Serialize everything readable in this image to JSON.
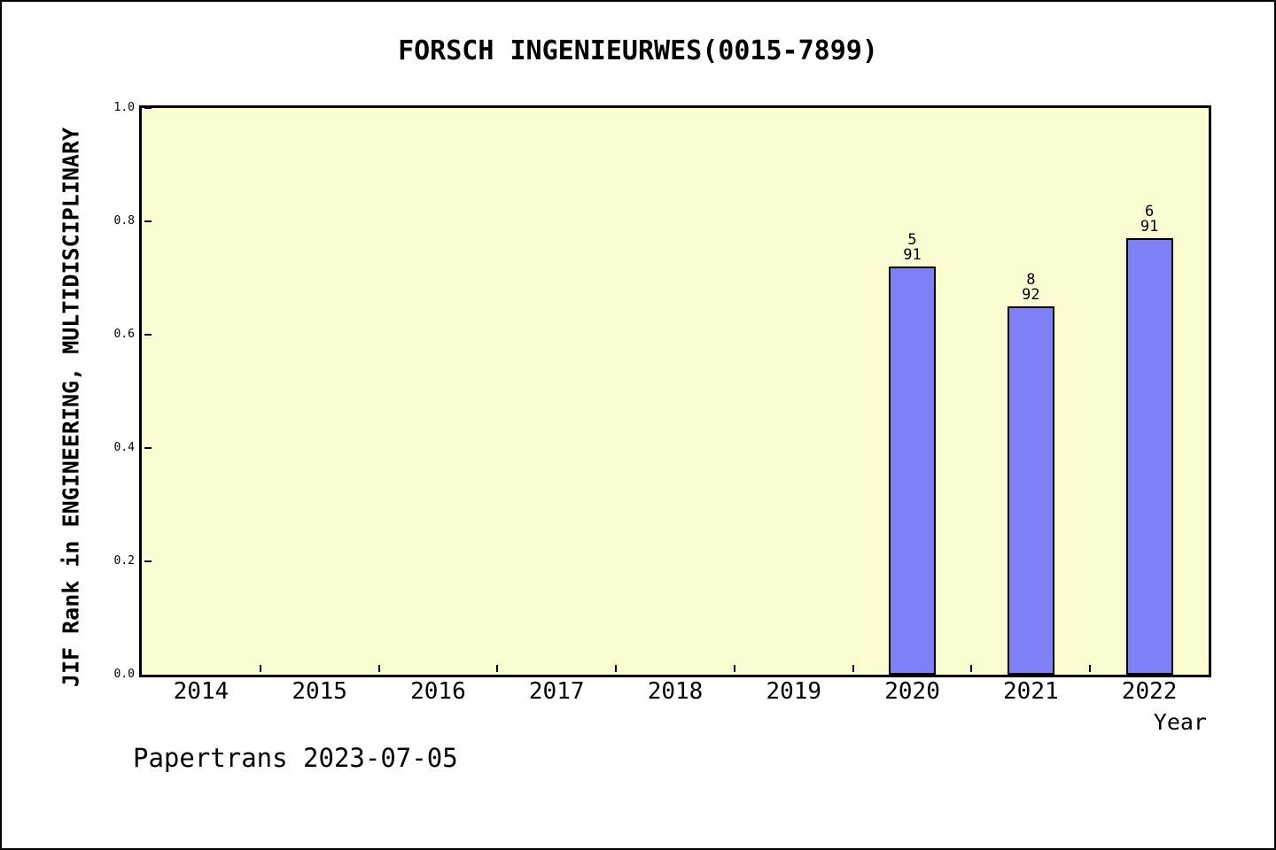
{
  "chart_data": {
    "type": "bar",
    "title": "FORSCH INGENIEURWES(0015-7899)",
    "xlabel": "Year",
    "ylabel": "JIF Rank in ENGINEERING, MULTIDISCIPLINARY",
    "categories": [
      "2014",
      "2015",
      "2016",
      "2017",
      "2018",
      "2019",
      "2020",
      "2021",
      "2022"
    ],
    "values": [
      null,
      null,
      null,
      null,
      null,
      null,
      0.72,
      0.65,
      0.77
    ],
    "bar_annotations": [
      null,
      null,
      null,
      null,
      null,
      null,
      {
        "rank": "5",
        "total": "91"
      },
      {
        "rank": "8",
        "total": "92"
      },
      {
        "rank": "6",
        "total": "91"
      }
    ],
    "ylim": [
      0.0,
      1.0
    ],
    "yticks": [
      "0.0",
      "0.2",
      "0.4",
      "0.6",
      "0.8",
      "1.0"
    ],
    "grid": false,
    "legend": "none",
    "colors": {
      "bar_fill": "#8080F6",
      "bar_border": "#000000",
      "plot_bg": "#FCFCD3",
      "axis": "#000000",
      "text": "#000000"
    }
  },
  "footer": {
    "text": "Papertrans 2023-07-05"
  }
}
